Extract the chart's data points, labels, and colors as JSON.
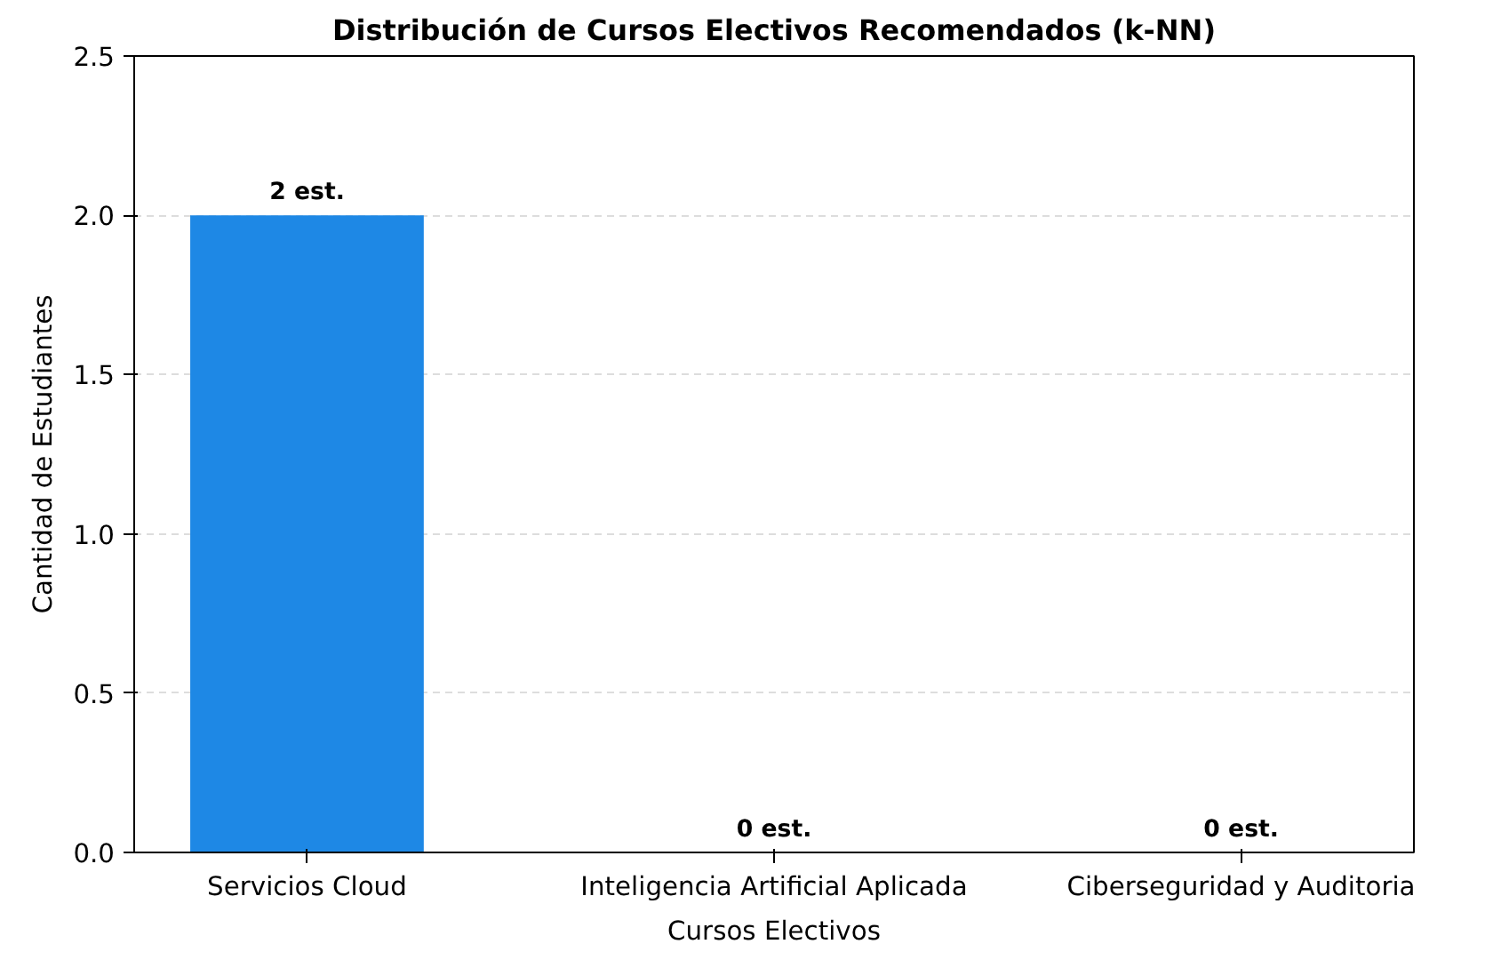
{
  "chart_data": {
    "type": "bar",
    "title": "Distribución de Cursos Electivos Recomendados (k-NN)",
    "xlabel": "Cursos Electivos",
    "ylabel": "Cantidad de Estudiantes",
    "categories": [
      "Servicios Cloud",
      "Inteligencia Artificial Aplicada",
      "Ciberseguridad y Auditoria"
    ],
    "values": [
      2,
      0,
      0
    ],
    "value_labels": [
      "2 est.",
      "0 est.",
      "0 est."
    ],
    "color": "#1e88e5",
    "ylim": [
      0,
      2.5
    ],
    "yticks": [
      {
        "value": 0,
        "label": "0.0"
      },
      {
        "value": 0.5,
        "label": "0.5"
      },
      {
        "value": 1,
        "label": "1.0"
      },
      {
        "value": 1.5,
        "label": "1.5"
      },
      {
        "value": 2,
        "label": "2.0"
      },
      {
        "value": 2.5,
        "label": "2.5"
      }
    ],
    "grid": "y"
  }
}
